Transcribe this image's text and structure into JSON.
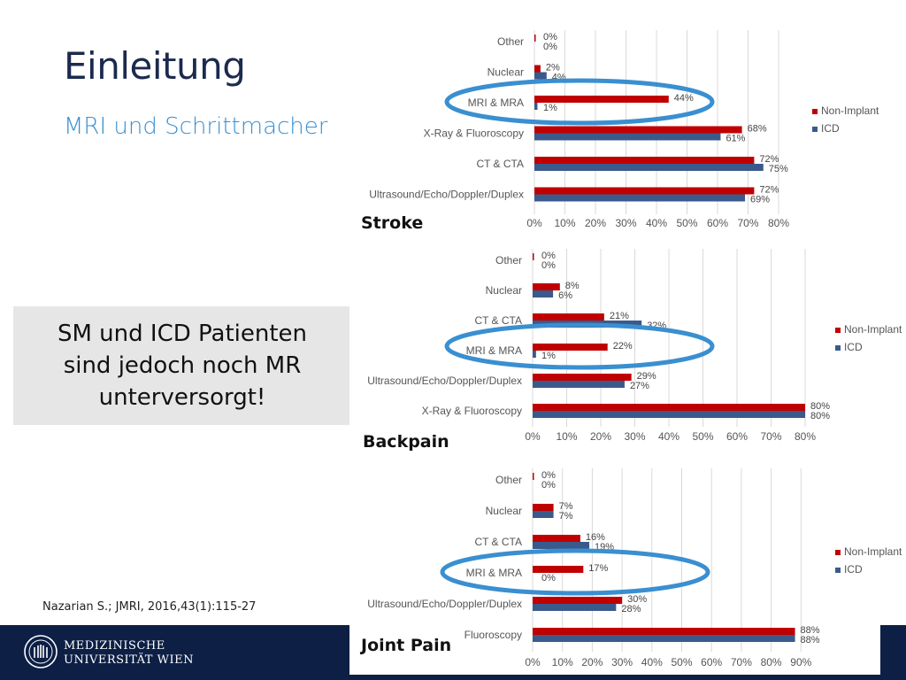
{
  "slide": {
    "title": "Einleitung",
    "subtitle": "MRI und Schrittmacher",
    "callout_lines": [
      "SM und ICD Patienten",
      "sind jedoch noch MR",
      "unterversorgt!"
    ],
    "citation": "Nazarian S.; JMRI, 2016,43(1):115-27",
    "footer": {
      "line1": "MEDIZINISCHE",
      "line2": "UNIVERSITÄT WIEN",
      "bg_color": "#0d1f45"
    }
  },
  "colors": {
    "non_implant": "#c00000",
    "icd": "#3a5a8c",
    "highlight_circle": "#3a8fd0"
  },
  "chart_data": [
    {
      "type": "bar",
      "panel_label": "Stroke",
      "categories": [
        "Other",
        "Nuclear",
        "MRI & MRA",
        "X-Ray & Fluoroscopy",
        "CT & CTA",
        "Ultrasound/Echo/Doppler/Duplex"
      ],
      "series": [
        {
          "name": "Non-Implant",
          "values": [
            0,
            2,
            44,
            68,
            72,
            72
          ]
        },
        {
          "name": "ICD",
          "values": [
            0,
            4,
            1,
            61,
            75,
            69
          ]
        }
      ],
      "data_labels": {
        "Non-Implant": [
          "0%",
          "2%",
          "44%",
          "68%",
          "72%",
          "72%"
        ],
        "ICD": [
          "0%",
          "4%",
          "1%",
          "61%",
          "75%",
          "69%"
        ]
      },
      "xlim": [
        0,
        80
      ],
      "tick_labels": [
        "0%",
        "10%",
        "20%",
        "30%",
        "40%",
        "50%",
        "60%",
        "70%",
        "80%"
      ],
      "orientation": "horizontal",
      "legend": "right",
      "highlight": "MRI & MRA"
    },
    {
      "type": "bar",
      "panel_label": "Backpain",
      "categories": [
        "Other",
        "Nuclear",
        "CT & CTA",
        "MRI & MRA",
        "Ultrasound/Echo/Doppler/Duplex",
        "X-Ray & Fluoroscopy"
      ],
      "series": [
        {
          "name": "Non-Implant",
          "values": [
            0,
            8,
            21,
            22,
            29,
            80
          ]
        },
        {
          "name": "ICD",
          "values": [
            0,
            6,
            32,
            1,
            27,
            80
          ]
        }
      ],
      "data_labels": {
        "Non-Implant": [
          "0%",
          "8%",
          "21%",
          "22%",
          "29%",
          "80%"
        ],
        "ICD": [
          "0%",
          "6%",
          "32%",
          "1%",
          "27%",
          "80%"
        ]
      },
      "xlim": [
        0,
        80
      ],
      "tick_labels": [
        "0%",
        "10%",
        "20%",
        "30%",
        "40%",
        "50%",
        "60%",
        "70%",
        "80%"
      ],
      "orientation": "horizontal",
      "legend": "right",
      "highlight": "MRI & MRA"
    },
    {
      "type": "bar",
      "panel_label": "Joint Pain",
      "categories": [
        "Other",
        "Nuclear",
        "CT & CTA",
        "MRI & MRA",
        "Ultrasound/Echo/Doppler/Duplex",
        "Fluoroscopy"
      ],
      "series": [
        {
          "name": "Non-Implant",
          "values": [
            0,
            7,
            16,
            17,
            30,
            88
          ]
        },
        {
          "name": "ICD",
          "values": [
            0,
            7,
            19,
            0,
            28,
            88
          ]
        }
      ],
      "data_labels": {
        "Non-Implant": [
          "0%",
          "7%",
          "16%",
          "17%",
          "30%",
          "88%"
        ],
        "ICD": [
          "0%",
          "7%",
          "19%",
          "0%",
          "28%",
          "88%"
        ]
      },
      "xlim": [
        0,
        90
      ],
      "tick_labels": [
        "0%",
        "10%",
        "20%",
        "30%",
        "40%",
        "50%",
        "60%",
        "70%",
        "80%",
        "90%"
      ],
      "orientation": "horizontal",
      "legend": "right",
      "highlight": "MRI & MRA"
    }
  ]
}
